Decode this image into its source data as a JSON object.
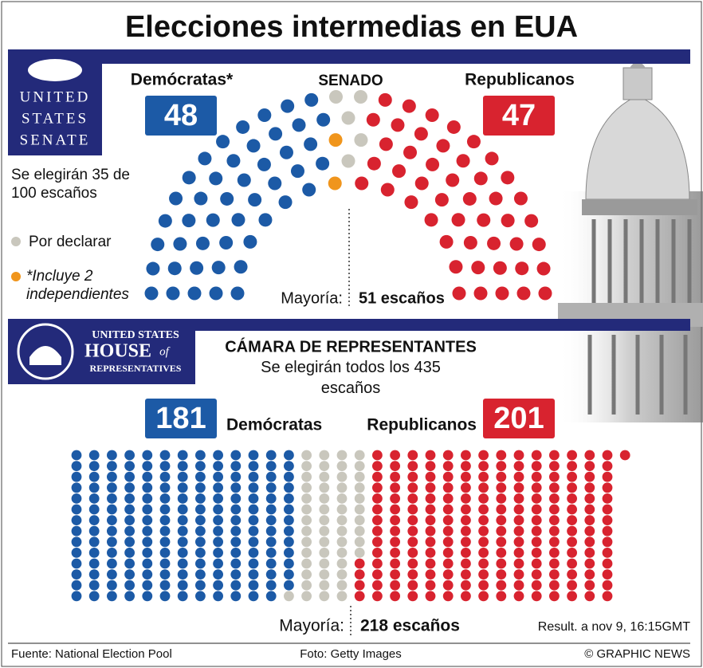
{
  "title": "Elecciones intermedias en EUA",
  "logos": {
    "senate": [
      "UNITED",
      "STATES",
      "SENATE"
    ],
    "house": [
      "UNITED STATES",
      "HOUSE",
      "of",
      "REPRESENTATIVES"
    ]
  },
  "chart_data": [
    {
      "type": "parliament",
      "title": "SENADO",
      "subtitle": "Se elegirán 35 de 100 escaños",
      "series": [
        {
          "name": "Demócratas*",
          "color": "#1c5aa6",
          "values": [
            48
          ]
        },
        {
          "name": "Por declarar",
          "color": "#c9c7bd",
          "values": [
            5
          ]
        },
        {
          "name": "Republicanos",
          "color": "#d8232f",
          "values": [
            47
          ]
        }
      ],
      "note": {
        "text": "*Incluye 2 independientes",
        "value": 2,
        "color": "#f0951c"
      },
      "majority": {
        "label": "Mayoría:",
        "value": "51 escaños"
      }
    },
    {
      "type": "waffle",
      "title": "CÁMARA DE REPRESENTANTES",
      "subtitle": "Se elegirán todos los 435 escaños",
      "series": [
        {
          "name": "Demócratas",
          "color": "#1c5aa6",
          "values": [
            181
          ]
        },
        {
          "color": "#c9c7bd",
          "values": [
            53
          ]
        },
        {
          "name": "Republicanos",
          "color": "#d8232f",
          "values": [
            201
          ]
        }
      ],
      "majority": {
        "label": "Mayoría:",
        "value": "218 escaños"
      },
      "note": "Result. a nov 9, 16:15GMT"
    }
  ],
  "footer": {
    "source": "Fuente: National Election Pool",
    "photo": "Foto: Getty Images",
    "credit": "© GRAPHIC NEWS"
  }
}
